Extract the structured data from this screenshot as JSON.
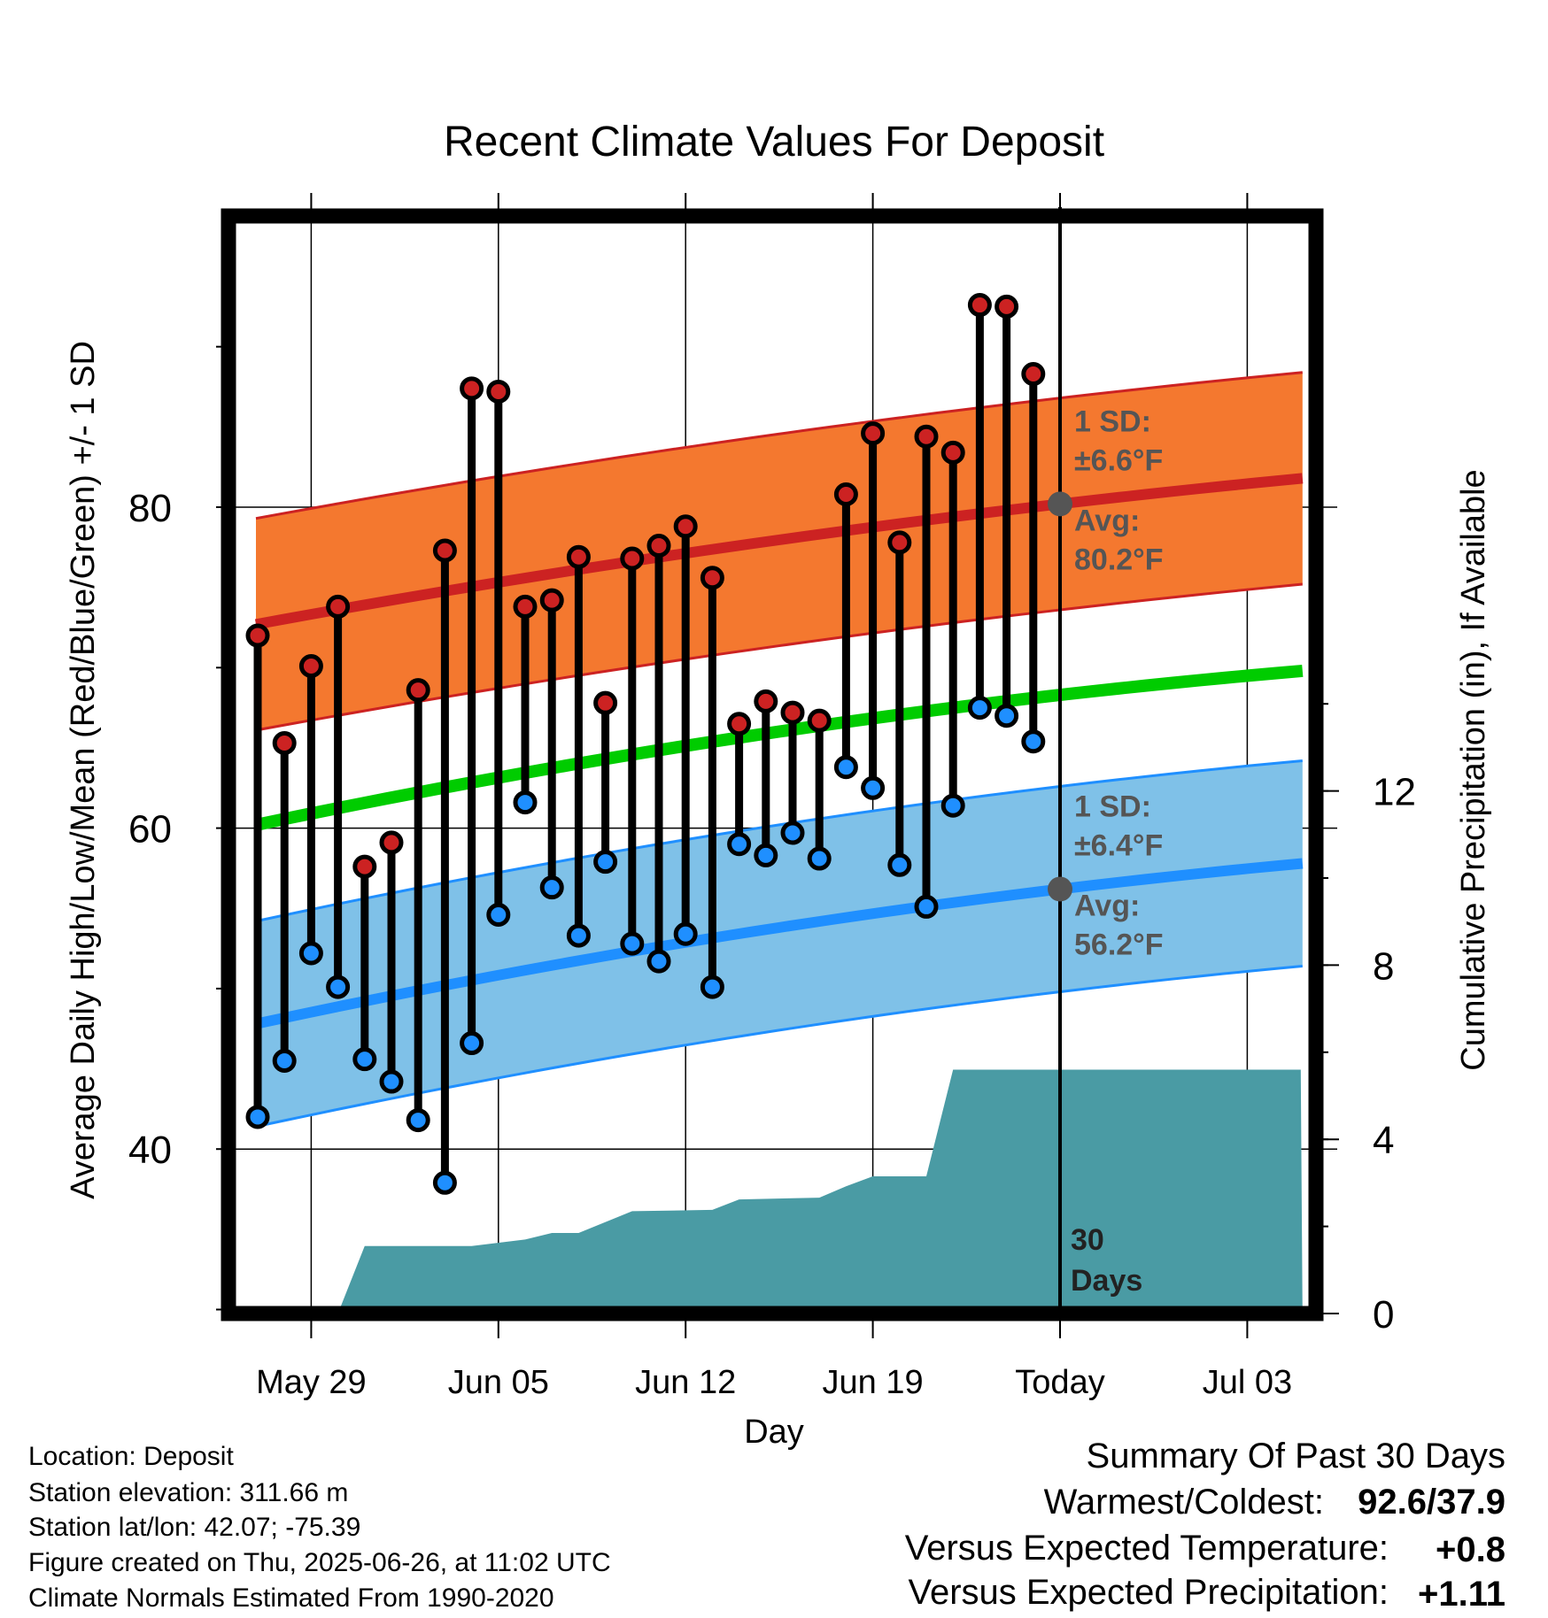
{
  "chart_data": {
    "type": "line",
    "title": "Recent Climate Values For Deposit",
    "xlabel": "Day",
    "ylabel": "Average Daily High/Low/Mean (Red/Blue/Green) +/- 1 SD",
    "y2label": "Cumulative Precipitation (in), If Available",
    "x_tick_labels": [
      "May 29",
      "Jun 05",
      "Jun 12",
      "Jun 19",
      "Today",
      "Jul 03"
    ],
    "y_tick_labels": [
      "40",
      "60",
      "80"
    ],
    "y2_tick_labels": [
      "0",
      "4",
      "8",
      "12"
    ],
    "ylim": [
      30,
      97
    ],
    "y2lim": [
      0,
      24
    ],
    "x_day_range": [
      "May 27",
      "Jul 05"
    ],
    "today_date": "Jun 26",
    "days": [
      "May 27",
      "May 28",
      "May 29",
      "May 30",
      "May 31",
      "Jun 01",
      "Jun 02",
      "Jun 03",
      "Jun 04",
      "Jun 05",
      "Jun 06",
      "Jun 07",
      "Jun 08",
      "Jun 09",
      "Jun 10",
      "Jun 11",
      "Jun 12",
      "Jun 13",
      "Jun 14",
      "Jun 15",
      "Jun 16",
      "Jun 17",
      "Jun 18",
      "Jun 19",
      "Jun 20",
      "Jun 21",
      "Jun 22",
      "Jun 23",
      "Jun 24",
      "Jun 25"
    ],
    "highs": [
      72.0,
      65.3,
      70.1,
      73.8,
      57.6,
      59.1,
      68.6,
      77.3,
      87.4,
      87.2,
      73.8,
      74.2,
      76.9,
      67.8,
      76.8,
      77.6,
      78.8,
      75.6,
      66.5,
      67.9,
      67.2,
      66.7,
      80.8,
      84.6,
      77.8,
      84.4,
      83.4,
      92.6,
      92.5,
      88.3
    ],
    "lows": [
      42.0,
      45.5,
      52.2,
      50.1,
      45.6,
      44.2,
      41.8,
      37.9,
      46.6,
      54.6,
      61.6,
      56.3,
      53.3,
      57.9,
      52.8,
      51.7,
      53.4,
      50.1,
      59.0,
      58.3,
      59.7,
      58.1,
      63.8,
      62.5,
      57.7,
      55.1,
      61.4,
      67.5,
      67.0,
      65.4
    ],
    "normal_day_range": [
      "May 27",
      "Jul 05"
    ],
    "normal_high": {
      "start": 72.7,
      "today": 80.2,
      "end": 81.8
    },
    "normal_low": {
      "start": 47.8,
      "today": 56.2,
      "end": 57.8
    },
    "normal_mean": {
      "start": 60.2,
      "today": 68.3,
      "end": 69.8
    },
    "high_sd": 6.6,
    "low_sd": 6.4,
    "precip_cumulative": [
      {
        "day": "May 30",
        "value": 0.0
      },
      {
        "day": "May 31",
        "value": 1.55
      },
      {
        "day": "Jun 04",
        "value": 1.55
      },
      {
        "day": "Jun 06",
        "value": 1.7
      },
      {
        "day": "Jun 07",
        "value": 1.85
      },
      {
        "day": "Jun 08",
        "value": 1.85
      },
      {
        "day": "Jun 10",
        "value": 2.35
      },
      {
        "day": "Jun 13",
        "value": 2.38
      },
      {
        "day": "Jun 14",
        "value": 2.62
      },
      {
        "day": "Jun 17",
        "value": 2.66
      },
      {
        "day": "Jun 18",
        "value": 2.92
      },
      {
        "day": "Jun 19",
        "value": 3.15
      },
      {
        "day": "Jun 21",
        "value": 3.15
      },
      {
        "day": "Jun 22",
        "value": 5.6
      },
      {
        "day": "Jul 05",
        "value": 5.6
      }
    ],
    "colors": {
      "high": "#cc2222",
      "high_band": "#f4782f",
      "low": "#1f8fff",
      "low_band": "#7fc1e8",
      "mean": "#00cc00",
      "precip": "#4a9ba4",
      "high_marker": "#cc2222",
      "low_marker": "#1f8fff"
    },
    "annotations": {
      "high_sd_title": "1 SD:",
      "high_sd_value": "±6.6°F",
      "high_avg_title": "Avg:",
      "high_avg_value": "80.2°F",
      "low_sd_title": "1 SD:",
      "low_sd_value": "±6.4°F",
      "low_avg_title": "Avg:",
      "low_avg_value": "56.2°F",
      "days_number": "30",
      "days_word": "Days"
    }
  },
  "info": {
    "location": "Location: Deposit",
    "elevation": "Station elevation: 311.66 m",
    "latlon": "Station lat/lon: 42.07; -75.39",
    "created": "Figure created on Thu, 2025-06-26, at 11:02 UTC",
    "normals": "Climate Normals Estimated From 1990-2020"
  },
  "summary": {
    "heading": "Summary Of Past 30 Days",
    "warm_cold_label": "Warmest/Coldest:",
    "warm_cold_value": "92.6/37.9",
    "temp_label": "Versus Expected Temperature:",
    "temp_value": "+0.8",
    "temp_color": "#cc2222",
    "precip_label": "Versus Expected Precipitation:",
    "precip_value": "+1.11",
    "precip_color": "#22bb22"
  }
}
